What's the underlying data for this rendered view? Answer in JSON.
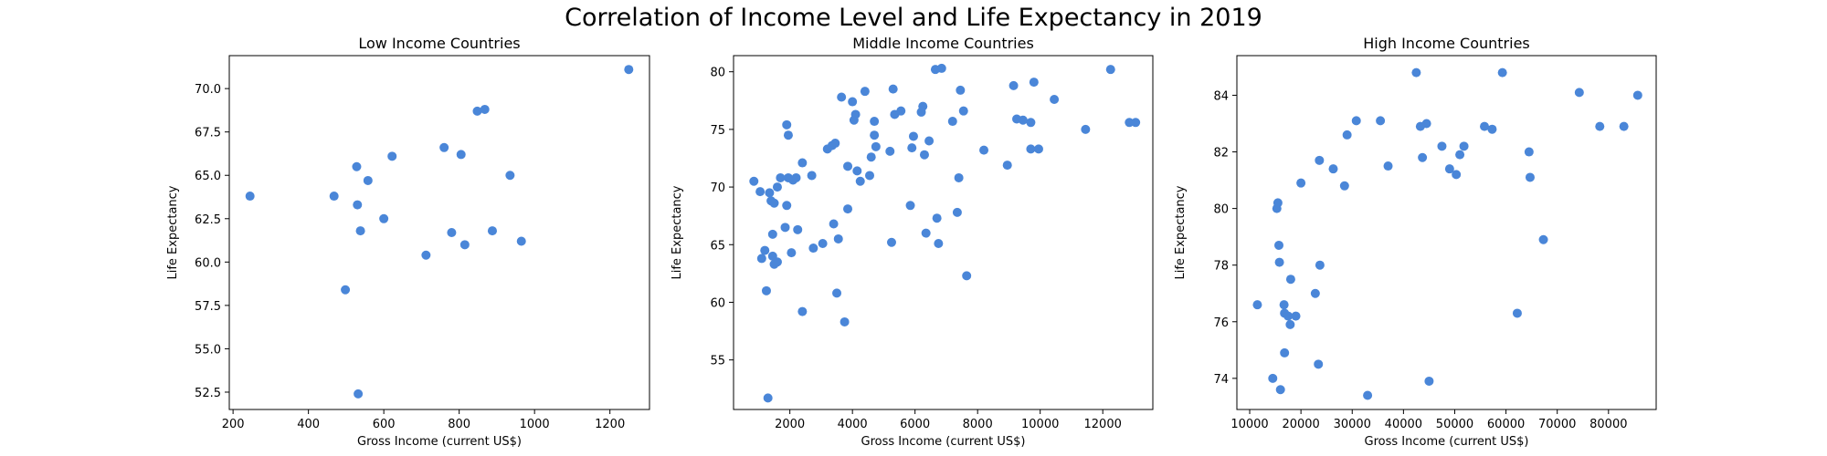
{
  "figure": {
    "title": "Correlation of Income Level and Life Expectancy in 2019",
    "point_color": "#4a86d8"
  },
  "chart_data": [
    {
      "type": "scatter",
      "title": "Low Income Countries",
      "xlabel": "Gross Income (current US$)",
      "ylabel": "Life Expectancy",
      "xlim": [
        190,
        1305
      ],
      "ylim": [
        51.5,
        71.9
      ],
      "xticks": [
        200,
        400,
        600,
        800,
        1000,
        1200
      ],
      "yticks": [
        52.5,
        55.0,
        57.5,
        60.0,
        62.5,
        65.0,
        67.5,
        70.0
      ],
      "xticklabels": [
        "200",
        "400",
        "600",
        "800",
        "1000",
        "1200"
      ],
      "yticklabels": [
        "52.5",
        "55.0",
        "57.5",
        "60.0",
        "62.5",
        "65.0",
        "67.5",
        "70.0"
      ],
      "grid": false,
      "points": [
        {
          "x": 245,
          "y": 63.8
        },
        {
          "x": 468,
          "y": 63.8
        },
        {
          "x": 498,
          "y": 58.4
        },
        {
          "x": 528,
          "y": 65.5
        },
        {
          "x": 530,
          "y": 63.3
        },
        {
          "x": 532,
          "y": 52.4
        },
        {
          "x": 538,
          "y": 61.8
        },
        {
          "x": 558,
          "y": 64.7
        },
        {
          "x": 600,
          "y": 62.5
        },
        {
          "x": 622,
          "y": 66.1
        },
        {
          "x": 712,
          "y": 60.4
        },
        {
          "x": 760,
          "y": 66.6
        },
        {
          "x": 780,
          "y": 61.7
        },
        {
          "x": 805,
          "y": 66.2
        },
        {
          "x": 815,
          "y": 61.0
        },
        {
          "x": 848,
          "y": 68.7
        },
        {
          "x": 868,
          "y": 68.8
        },
        {
          "x": 888,
          "y": 61.8
        },
        {
          "x": 935,
          "y": 65.0
        },
        {
          "x": 965,
          "y": 61.2
        },
        {
          "x": 1250,
          "y": 71.1
        }
      ]
    },
    {
      "type": "scatter",
      "title": "Middle Income Countries",
      "xlabel": "Gross Income (current US$)",
      "ylabel": "Life Expectancy",
      "xlim": [
        200,
        13600
      ],
      "ylim": [
        50.7,
        81.4
      ],
      "xticks": [
        2000,
        4000,
        6000,
        8000,
        10000,
        12000
      ],
      "yticks": [
        55,
        60,
        65,
        70,
        75,
        80
      ],
      "xticklabels": [
        "2000",
        "4000",
        "6000",
        "8000",
        "10000",
        "12000"
      ],
      "yticklabels": [
        "55",
        "60",
        "65",
        "70",
        "75",
        "80"
      ],
      "grid": false,
      "points": [
        {
          "x": 850,
          "y": 70.5
        },
        {
          "x": 1050,
          "y": 69.6
        },
        {
          "x": 1100,
          "y": 63.8
        },
        {
          "x": 1200,
          "y": 64.5
        },
        {
          "x": 1250,
          "y": 61.0
        },
        {
          "x": 1300,
          "y": 51.7
        },
        {
          "x": 1350,
          "y": 69.5
        },
        {
          "x": 1400,
          "y": 68.8
        },
        {
          "x": 1450,
          "y": 65.9
        },
        {
          "x": 1450,
          "y": 64.0
        },
        {
          "x": 1500,
          "y": 68.6
        },
        {
          "x": 1500,
          "y": 63.3
        },
        {
          "x": 1600,
          "y": 70.0
        },
        {
          "x": 1600,
          "y": 63.5
        },
        {
          "x": 1700,
          "y": 70.8
        },
        {
          "x": 1850,
          "y": 66.5
        },
        {
          "x": 1900,
          "y": 75.4
        },
        {
          "x": 1900,
          "y": 68.4
        },
        {
          "x": 1950,
          "y": 74.5
        },
        {
          "x": 1950,
          "y": 70.8
        },
        {
          "x": 2050,
          "y": 64.3
        },
        {
          "x": 2100,
          "y": 70.6
        },
        {
          "x": 2200,
          "y": 70.8
        },
        {
          "x": 2250,
          "y": 66.3
        },
        {
          "x": 2400,
          "y": 59.2
        },
        {
          "x": 2400,
          "y": 72.1
        },
        {
          "x": 2700,
          "y": 71.0
        },
        {
          "x": 2750,
          "y": 64.7
        },
        {
          "x": 3050,
          "y": 65.1
        },
        {
          "x": 3200,
          "y": 73.3
        },
        {
          "x": 3350,
          "y": 73.6
        },
        {
          "x": 3400,
          "y": 66.8
        },
        {
          "x": 3450,
          "y": 73.8
        },
        {
          "x": 3500,
          "y": 60.8
        },
        {
          "x": 3550,
          "y": 65.5
        },
        {
          "x": 3650,
          "y": 77.8
        },
        {
          "x": 3750,
          "y": 58.3
        },
        {
          "x": 3850,
          "y": 71.8
        },
        {
          "x": 3850,
          "y": 68.1
        },
        {
          "x": 4000,
          "y": 77.4
        },
        {
          "x": 4050,
          "y": 75.8
        },
        {
          "x": 4100,
          "y": 76.3
        },
        {
          "x": 4150,
          "y": 71.4
        },
        {
          "x": 4250,
          "y": 70.5
        },
        {
          "x": 4400,
          "y": 78.3
        },
        {
          "x": 4550,
          "y": 71.0
        },
        {
          "x": 4600,
          "y": 72.6
        },
        {
          "x": 4700,
          "y": 75.7
        },
        {
          "x": 4700,
          "y": 74.5
        },
        {
          "x": 4750,
          "y": 73.5
        },
        {
          "x": 5200,
          "y": 73.1
        },
        {
          "x": 5250,
          "y": 65.2
        },
        {
          "x": 5300,
          "y": 78.5
        },
        {
          "x": 5350,
          "y": 76.3
        },
        {
          "x": 5550,
          "y": 76.6
        },
        {
          "x": 5850,
          "y": 68.4
        },
        {
          "x": 5900,
          "y": 73.4
        },
        {
          "x": 5950,
          "y": 74.4
        },
        {
          "x": 6200,
          "y": 76.5
        },
        {
          "x": 6250,
          "y": 77.0
        },
        {
          "x": 6300,
          "y": 72.8
        },
        {
          "x": 6350,
          "y": 66.0
        },
        {
          "x": 6450,
          "y": 74.0
        },
        {
          "x": 6650,
          "y": 80.2
        },
        {
          "x": 6700,
          "y": 67.3
        },
        {
          "x": 6750,
          "y": 65.1
        },
        {
          "x": 6850,
          "y": 80.3
        },
        {
          "x": 7200,
          "y": 75.7
        },
        {
          "x": 7350,
          "y": 67.8
        },
        {
          "x": 7400,
          "y": 70.8
        },
        {
          "x": 7450,
          "y": 78.4
        },
        {
          "x": 7550,
          "y": 76.6
        },
        {
          "x": 7650,
          "y": 62.3
        },
        {
          "x": 8200,
          "y": 73.2
        },
        {
          "x": 8950,
          "y": 71.9
        },
        {
          "x": 9150,
          "y": 78.8
        },
        {
          "x": 9250,
          "y": 75.9
        },
        {
          "x": 9450,
          "y": 75.8
        },
        {
          "x": 9700,
          "y": 75.6
        },
        {
          "x": 9700,
          "y": 73.3
        },
        {
          "x": 9800,
          "y": 79.1
        },
        {
          "x": 9950,
          "y": 73.3
        },
        {
          "x": 10450,
          "y": 77.6
        },
        {
          "x": 11450,
          "y": 75.0
        },
        {
          "x": 12250,
          "y": 80.2
        },
        {
          "x": 12850,
          "y": 75.6
        },
        {
          "x": 13050,
          "y": 75.6
        }
      ]
    },
    {
      "type": "scatter",
      "title": "High Income Countries",
      "xlabel": "Gross Income (current US$)",
      "ylabel": "Life Expectancy",
      "xlim": [
        7500,
        89300
      ],
      "ylim": [
        72.9,
        85.4
      ],
      "xticks": [
        10000,
        20000,
        30000,
        40000,
        50000,
        60000,
        70000,
        80000
      ],
      "yticks": [
        74,
        76,
        78,
        80,
        82,
        84
      ],
      "xticklabels": [
        "10000",
        "20000",
        "30000",
        "40000",
        "50000",
        "60000",
        "70000",
        "80000"
      ],
      "yticklabels": [
        "74",
        "76",
        "78",
        "80",
        "82",
        "84"
      ],
      "grid": false,
      "points": [
        {
          "x": 11500,
          "y": 76.6
        },
        {
          "x": 14500,
          "y": 74.0
        },
        {
          "x": 15300,
          "y": 80.0
        },
        {
          "x": 15500,
          "y": 80.2
        },
        {
          "x": 15700,
          "y": 78.7
        },
        {
          "x": 15800,
          "y": 78.1
        },
        {
          "x": 16000,
          "y": 73.6
        },
        {
          "x": 16700,
          "y": 76.6
        },
        {
          "x": 16800,
          "y": 76.3
        },
        {
          "x": 16800,
          "y": 74.9
        },
        {
          "x": 17500,
          "y": 76.2
        },
        {
          "x": 17900,
          "y": 75.9
        },
        {
          "x": 18000,
          "y": 77.5
        },
        {
          "x": 19000,
          "y": 76.2
        },
        {
          "x": 20000,
          "y": 80.9
        },
        {
          "x": 22800,
          "y": 77.0
        },
        {
          "x": 23400,
          "y": 74.5
        },
        {
          "x": 23600,
          "y": 81.7
        },
        {
          "x": 23700,
          "y": 78.0
        },
        {
          "x": 26300,
          "y": 81.4
        },
        {
          "x": 28500,
          "y": 80.8
        },
        {
          "x": 29000,
          "y": 82.6
        },
        {
          "x": 30800,
          "y": 83.1
        },
        {
          "x": 33000,
          "y": 73.4
        },
        {
          "x": 35500,
          "y": 83.1
        },
        {
          "x": 37000,
          "y": 81.5
        },
        {
          "x": 42500,
          "y": 84.8
        },
        {
          "x": 43300,
          "y": 82.9
        },
        {
          "x": 43700,
          "y": 81.8
        },
        {
          "x": 44500,
          "y": 83.0
        },
        {
          "x": 45000,
          "y": 73.9
        },
        {
          "x": 47500,
          "y": 82.2
        },
        {
          "x": 49000,
          "y": 81.4
        },
        {
          "x": 50300,
          "y": 81.2
        },
        {
          "x": 51000,
          "y": 81.9
        },
        {
          "x": 51800,
          "y": 82.2
        },
        {
          "x": 55800,
          "y": 82.9
        },
        {
          "x": 57300,
          "y": 82.8
        },
        {
          "x": 59300,
          "y": 84.8
        },
        {
          "x": 62200,
          "y": 76.3
        },
        {
          "x": 64500,
          "y": 82.0
        },
        {
          "x": 64700,
          "y": 81.1
        },
        {
          "x": 67300,
          "y": 78.9
        },
        {
          "x": 74300,
          "y": 84.1
        },
        {
          "x": 78300,
          "y": 82.9
        },
        {
          "x": 83000,
          "y": 82.9
        },
        {
          "x": 85700,
          "y": 84.0
        }
      ]
    }
  ]
}
